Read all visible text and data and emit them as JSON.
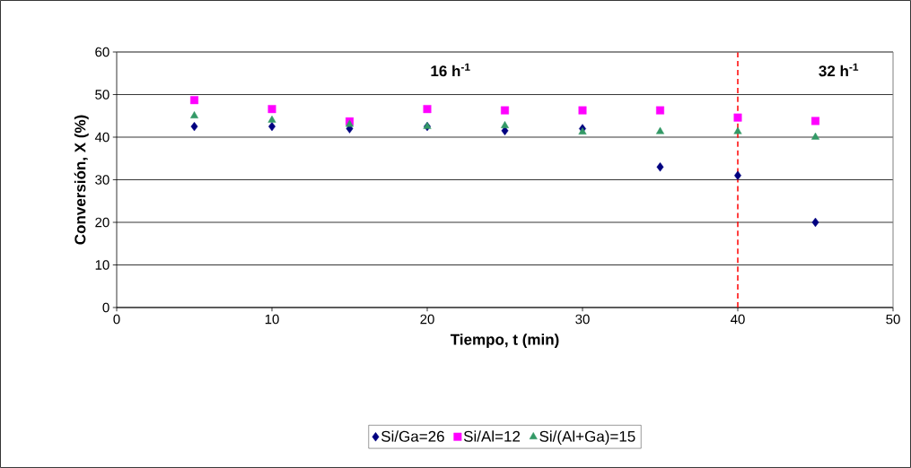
{
  "chart_data": {
    "type": "scatter",
    "xlabel": "Tiempo, t (min)",
    "ylabel": "Conversión, X (%)",
    "x": [
      5,
      10,
      15,
      20,
      25,
      30,
      35,
      40,
      45
    ],
    "series": [
      {
        "name": "Si/Ga=26",
        "color": "#000080",
        "marker": "diamond",
        "values": [
          42.5,
          42.5,
          42,
          42.5,
          41.5,
          42,
          33,
          31,
          20
        ]
      },
      {
        "name": "Si/Al=12",
        "color": "#ff00ff",
        "marker": "square",
        "values": [
          48.7,
          46.6,
          43.7,
          46.6,
          46.3,
          46.3,
          46.3,
          44.6,
          43.8
        ]
      },
      {
        "name": "Si/(Al+Ga)=15",
        "color": "#339966",
        "marker": "triangle",
        "values": [
          45,
          44,
          43,
          42.5,
          42.7,
          41.2,
          41.3,
          41.3,
          40
        ]
      }
    ],
    "xlim": [
      0,
      50
    ],
    "xticks": [
      0,
      10,
      20,
      30,
      40,
      50
    ],
    "ylim": [
      0,
      60
    ],
    "yticks": [
      0,
      10,
      20,
      30,
      40,
      50,
      60
    ],
    "grid": "y",
    "legend": "bottom",
    "ref_lines": [
      {
        "axis": "x",
        "value": 40,
        "color": "#ff0000",
        "line_style": "dashed"
      }
    ],
    "annotations": [
      "16 h$^{-1}$",
      "32 h$^{-1}$"
    ]
  }
}
